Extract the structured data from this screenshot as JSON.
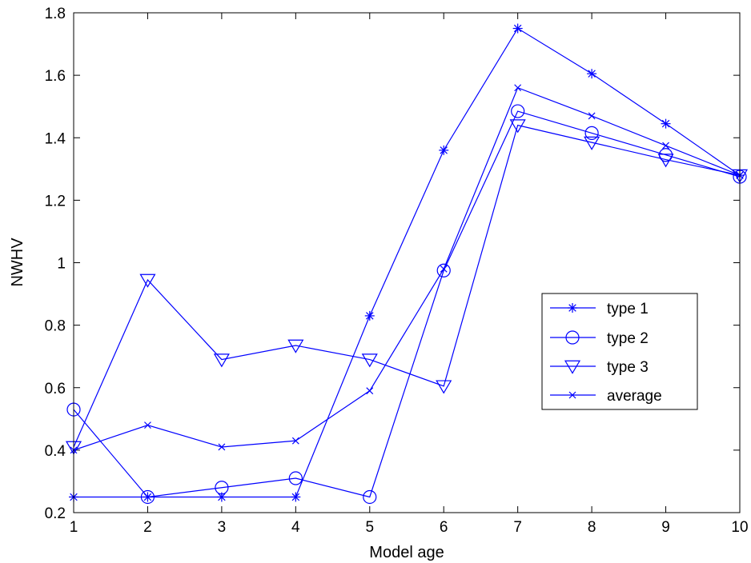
{
  "chart_data": {
    "type": "line",
    "title": "",
    "xlabel": "Model age",
    "ylabel": "NWHV",
    "x": [
      1,
      2,
      3,
      4,
      5,
      6,
      7,
      8,
      9,
      10
    ],
    "xlim": [
      1,
      10
    ],
    "ylim": [
      0.2,
      1.8
    ],
    "xticks": [
      "1",
      "2",
      "3",
      "4",
      "5",
      "6",
      "7",
      "8",
      "9",
      "10"
    ],
    "yticks": [
      "0.2",
      "0.4",
      "0.6",
      "0.8",
      "1",
      "1.2",
      "1.4",
      "1.6",
      "1.8"
    ],
    "grid": false,
    "legend_position": "right-center",
    "line_color": "#0000ff",
    "series": [
      {
        "name": "type 1",
        "marker": "asterisk",
        "x": [
          1,
          2,
          3,
          4,
          5,
          6,
          7,
          8,
          9,
          10
        ],
        "values": [
          0.25,
          0.25,
          0.25,
          0.25,
          0.83,
          1.36,
          1.75,
          1.605,
          1.445,
          1.28
        ]
      },
      {
        "name": "type 2",
        "marker": "circle",
        "x": [
          1,
          2,
          3,
          4,
          5,
          6,
          7,
          8,
          9,
          10
        ],
        "values": [
          0.53,
          0.25,
          0.28,
          0.31,
          0.25,
          0.975,
          1.485,
          1.415,
          1.345,
          1.275
        ]
      },
      {
        "name": "type 3",
        "marker": "triangle-down",
        "x": [
          1,
          2,
          3,
          4,
          5,
          6,
          7,
          8,
          9,
          10
        ],
        "values": [
          0.41,
          0.945,
          0.69,
          0.735,
          0.69,
          0.605,
          1.44,
          1.385,
          1.33,
          1.28
        ]
      },
      {
        "name": "average",
        "marker": "x",
        "x": [
          1,
          2,
          3,
          4,
          5,
          6,
          7,
          8,
          9,
          10
        ],
        "values": [
          0.4,
          0.48,
          0.41,
          0.43,
          0.59,
          0.98,
          1.56,
          1.47,
          1.375,
          1.28
        ]
      }
    ]
  }
}
